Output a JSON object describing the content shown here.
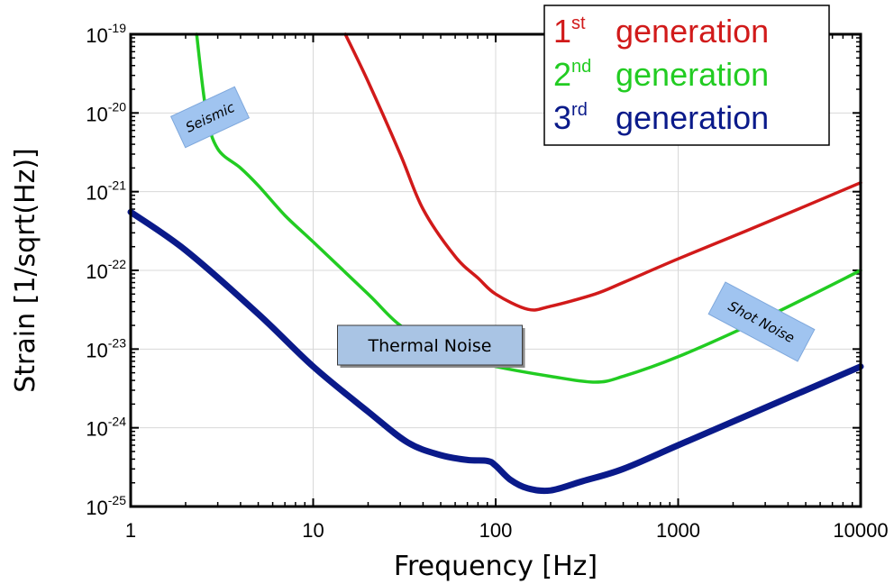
{
  "chart_data": {
    "type": "line",
    "xlabel": "Frequency [Hz]",
    "ylabel": "Strain [1/sqrt(Hz)]",
    "xscale": "log",
    "yscale": "log",
    "xlim": [
      1,
      10000
    ],
    "ylim": [
      1e-25,
      1e-19
    ],
    "x_ticks": [
      {
        "value": 1,
        "label": "1"
      },
      {
        "value": 10,
        "label": "10"
      },
      {
        "value": 100,
        "label": "100"
      },
      {
        "value": 1000,
        "label": "1000"
      },
      {
        "value": 10000,
        "label": "10000"
      }
    ],
    "y_ticks": [
      {
        "value": 1e-19,
        "base": "10",
        "exp": "-19"
      },
      {
        "value": 1e-20,
        "base": "10",
        "exp": "-20"
      },
      {
        "value": 1e-21,
        "base": "10",
        "exp": "-21"
      },
      {
        "value": 1e-22,
        "base": "10",
        "exp": "-22"
      },
      {
        "value": 1e-23,
        "base": "10",
        "exp": "-23"
      },
      {
        "value": 1e-24,
        "base": "10",
        "exp": "-24"
      },
      {
        "value": 1e-25,
        "base": "10",
        "exp": "-25"
      }
    ],
    "grid": true,
    "legend_position": "top-right",
    "series": [
      {
        "name": "1st generation",
        "legend_num": "1",
        "legend_sup": "st",
        "legend_word": "generation",
        "color": "#d11a1a",
        "x": [
          15,
          20,
          30,
          40,
          60,
          80,
          100,
          150,
          200,
          350,
          500,
          1000,
          3000,
          10000
        ],
        "y": [
          1e-19,
          2.5e-20,
          3e-21,
          6e-22,
          1.5e-22,
          8e-23,
          5e-23,
          3.2e-23,
          3.5e-23,
          5e-23,
          7e-23,
          1.4e-22,
          4e-22,
          1.3e-21
        ]
      },
      {
        "name": "2nd generation",
        "legend_num": "2",
        "legend_sup": "nd",
        "legend_word": "generation",
        "color": "#22cc22",
        "x": [
          2.3,
          2.6,
          3,
          4,
          5,
          7,
          10,
          20,
          30,
          50,
          80,
          100,
          200,
          350,
          500,
          1000,
          3000,
          10000
        ],
        "y": [
          1e-19,
          1e-20,
          3.5e-21,
          2e-21,
          1.2e-21,
          5e-22,
          2.3e-22,
          5e-23,
          2e-23,
          1e-23,
          7e-24,
          6e-24,
          4.5e-24,
          3.8e-24,
          4.5e-24,
          8e-24,
          2.5e-23,
          1e-22
        ]
      },
      {
        "name": "3rd generation",
        "legend_num": "3",
        "legend_sup": "rd",
        "legend_word": "generation",
        "color": "#0a1a8a",
        "x": [
          1,
          2,
          5,
          10,
          20,
          33,
          50,
          70,
          90,
          100,
          120,
          150,
          200,
          300,
          500,
          1000,
          3000,
          10000
        ],
        "y": [
          5.5e-22,
          1.8e-22,
          2.8e-23,
          6e-24,
          1.6e-24,
          6.5e-25,
          4.5e-25,
          3.9e-25,
          3.8e-25,
          3.3e-25,
          2.2e-25,
          1.7e-25,
          1.6e-25,
          2.1e-25,
          3e-25,
          6e-25,
          1.8e-24,
          6e-24
        ]
      }
    ],
    "annotations": [
      {
        "text": "Seismic",
        "fill": "#a0c4f0"
      },
      {
        "text": "Thermal Noise",
        "fill": "#a9c4e4"
      },
      {
        "text": "Shot Noise",
        "fill": "#a0c4f0"
      }
    ]
  }
}
